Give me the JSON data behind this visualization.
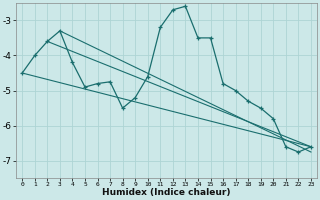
{
  "xlabel": "Humidex (Indice chaleur)",
  "ylabel": "",
  "bg_color": "#cce8e8",
  "grid_color": "#aed4d4",
  "line_color": "#1a6e6e",
  "xlim": [
    -0.5,
    23.5
  ],
  "ylim": [
    -7.5,
    -2.5
  ],
  "yticks": [
    -7,
    -6,
    -5,
    -4,
    -3
  ],
  "xticks": [
    0,
    1,
    2,
    3,
    4,
    5,
    6,
    7,
    8,
    9,
    10,
    11,
    12,
    13,
    14,
    15,
    16,
    17,
    18,
    19,
    20,
    21,
    22,
    23
  ],
  "series1_x": [
    0,
    1,
    2,
    3,
    4,
    5,
    6,
    7,
    8,
    9,
    10,
    11,
    12,
    13,
    14,
    15,
    16,
    17,
    18,
    19,
    20,
    21,
    22,
    23
  ],
  "series1_y": [
    -4.5,
    -4.0,
    -3.6,
    -3.3,
    -4.2,
    -4.9,
    -4.8,
    -4.75,
    -5.5,
    -5.2,
    -4.6,
    -3.2,
    -2.7,
    -2.6,
    -3.5,
    -3.5,
    -4.8,
    -5.0,
    -5.3,
    -5.5,
    -5.8,
    -6.6,
    -6.75,
    -6.6
  ],
  "series2_x": [
    0,
    23
  ],
  "series2_y": [
    -4.5,
    -6.6
  ],
  "series3_x": [
    2,
    23
  ],
  "series3_y": [
    -3.6,
    -6.6
  ],
  "series4_x": [
    3,
    23
  ],
  "series4_y": [
    -3.3,
    -6.75
  ]
}
